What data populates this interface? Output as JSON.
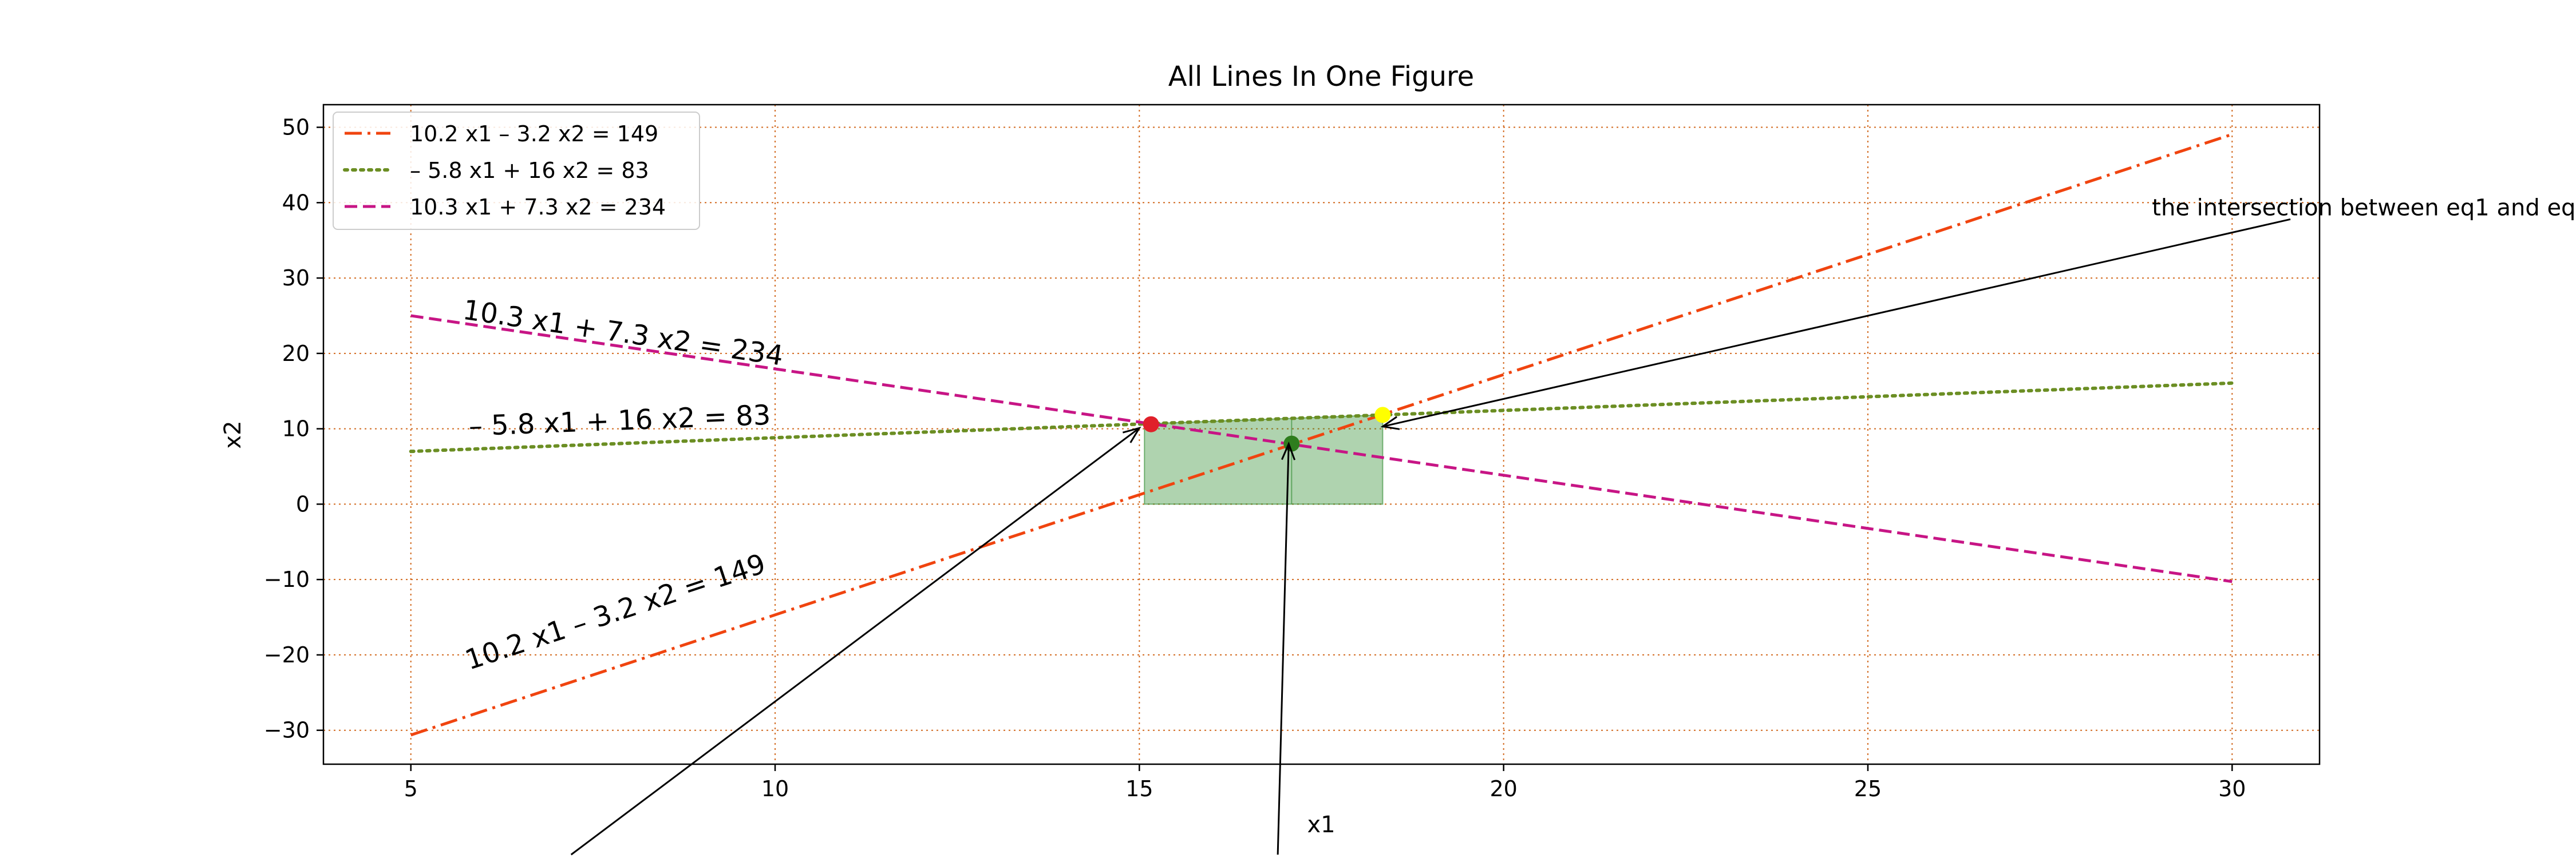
{
  "chart_data": {
    "type": "line",
    "title": "All Lines In One Figure",
    "xlabel": "x1",
    "ylabel": "x2",
    "xlim": [
      3.8,
      31.2
    ],
    "ylim": [
      -34.5,
      53.0
    ],
    "xticks": [
      5,
      10,
      15,
      20,
      25,
      30
    ],
    "yticks": [
      -30,
      -20,
      -10,
      0,
      10,
      20,
      30,
      40,
      50
    ],
    "xtick_labels": [
      "5",
      "10",
      "15",
      "20",
      "25",
      "30"
    ],
    "ytick_labels": [
      "−30",
      "−20",
      "−10",
      "0",
      "10",
      "20",
      "30",
      "40",
      "50"
    ],
    "grid": true,
    "grid_color": "#d2691e",
    "legend_position": "top-left",
    "series": [
      {
        "name": "10.2 x1 – 3.2 x2 = 149",
        "a": 10.2,
        "b": -3.2,
        "c": 149,
        "x": [
          5,
          30
        ],
        "style": "dashdot",
        "color": "#f0440f"
      },
      {
        "name": "– 5.8 x1 + 16 x2 = 83",
        "a": -5.8,
        "b": 16,
        "c": 83,
        "x": [
          5,
          30
        ],
        "style": "dotted",
        "color": "#6b8e23"
      },
      {
        "name": "10.3 x1 + 7.3 x2 = 234",
        "a": 10.3,
        "b": 7.3,
        "c": 234,
        "x": [
          5,
          30
        ],
        "style": "dashed",
        "color": "#c71585"
      }
    ],
    "line_labels": [
      {
        "text": "10.3 x1 + 7.3 x2 = 234",
        "series": 2,
        "x": 5.7,
        "y": 24.6
      },
      {
        "text": "– 5.8 x1 + 16 x2 = 83",
        "series": 1,
        "x": 5.8,
        "y": 9.1
      },
      {
        "text": "10.2 x1 – 3.2 x2 = 149",
        "series": 0,
        "x": 5.8,
        "y": -22.0
      }
    ],
    "feasible_region": {
      "color": "#2e8b2e",
      "polygon": [
        [
          15.07,
          0
        ],
        [
          15.07,
          10.65
        ],
        [
          18.34,
          11.84
        ],
        [
          18.34,
          0
        ]
      ],
      "inner_edge_x": 17.09
    },
    "points": [
      {
        "x": 15.16,
        "y": 10.6,
        "color": "#e0202a"
      },
      {
        "x": 17.09,
        "y": 8.03,
        "color": "#2e7d1e"
      },
      {
        "x": 18.34,
        "y": 11.84,
        "color": "#ffff00"
      }
    ],
    "annotations": [
      {
        "text": "the intersection between eq1 and eq",
        "text_x": 28.9,
        "text_y": 38.3,
        "tail_x": 30.8,
        "tail_y": 37.8,
        "head_x": 18.34,
        "head_y": 10.3
      },
      {
        "text": "",
        "tail_x": 7.2,
        "tail_y": -46.5,
        "head_x": 15.0,
        "head_y": 10.1
      },
      {
        "text": "",
        "tail_x": 16.9,
        "tail_y": -46.5,
        "head_x": 17.05,
        "head_y": 8.0
      }
    ]
  }
}
